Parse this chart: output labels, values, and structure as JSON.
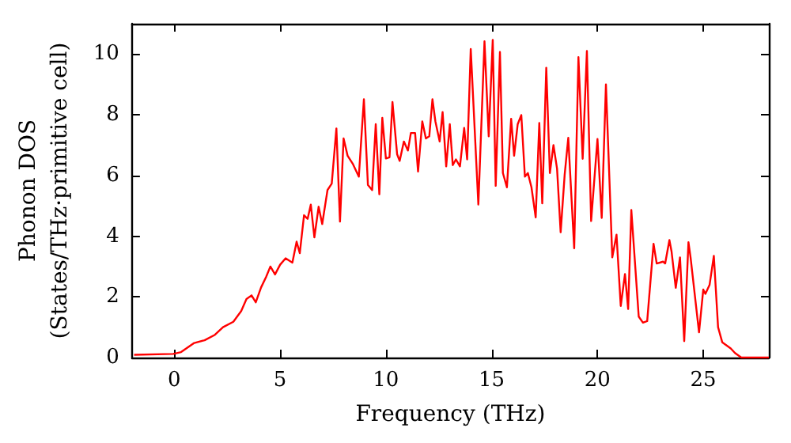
{
  "chart_data": {
    "type": "line",
    "xlabel": "Frequency (THz)",
    "ylabel": "Phonon DOS\n(States/THz·primitive cell)",
    "xlim": [
      -2,
      28.1
    ],
    "ylim": [
      0,
      11
    ],
    "xticks": [
      0,
      5,
      10,
      15,
      20,
      25
    ],
    "yticks": [
      0,
      2,
      4,
      6,
      8,
      10
    ],
    "grid": false,
    "marker": "none",
    "line_style": "solid",
    "series": [
      {
        "color": "#ff0000",
        "x": [
          -1.9,
          -0.05,
          0.32,
          0.94,
          1.43,
          1.92,
          2.3,
          2.79,
          3.16,
          3.41,
          3.65,
          3.85,
          4.1,
          4.34,
          4.54,
          4.76,
          5.0,
          5.26,
          5.58,
          5.78,
          5.93,
          6.13,
          6.3,
          6.45,
          6.62,
          6.82,
          6.99,
          7.24,
          7.44,
          7.66,
          7.83,
          8.0,
          8.19,
          8.43,
          8.72,
          8.96,
          9.15,
          9.35,
          9.52,
          9.69,
          9.83,
          10.0,
          10.17,
          10.31,
          10.53,
          10.65,
          10.85,
          11.04,
          11.18,
          11.38,
          11.52,
          11.72,
          11.89,
          12.05,
          12.2,
          12.34,
          12.54,
          12.68,
          12.85,
          13.02,
          13.16,
          13.31,
          13.5,
          13.7,
          13.84,
          14.01,
          14.37,
          14.66,
          14.86,
          15.05,
          15.19,
          15.39,
          15.53,
          15.72,
          15.92,
          16.06,
          16.23,
          16.4,
          16.57,
          16.71,
          16.88,
          17.08,
          17.25,
          17.39,
          17.58,
          17.75,
          17.92,
          18.09,
          18.26,
          18.45,
          18.62,
          18.9,
          19.1,
          19.3,
          19.5,
          19.7,
          20.0,
          20.2,
          20.4,
          20.7,
          20.9,
          21.1,
          21.3,
          21.45,
          21.6,
          21.95,
          22.15,
          22.35,
          22.65,
          22.8,
          23.1,
          23.2,
          23.4,
          23.5,
          23.7,
          23.9,
          24.1,
          24.3,
          24.4,
          24.8,
          25.0,
          25.1,
          25.3,
          25.5,
          25.7,
          25.9,
          26.3,
          26.5,
          26.8,
          28.1
        ],
        "values": [
          0.09,
          0.12,
          0.18,
          0.48,
          0.57,
          0.75,
          1.0,
          1.18,
          1.53,
          1.93,
          2.05,
          1.82,
          2.31,
          2.66,
          3.0,
          2.74,
          3.06,
          3.27,
          3.13,
          3.82,
          3.44,
          4.69,
          4.57,
          5.04,
          3.96,
          4.97,
          4.4,
          5.52,
          5.73,
          7.55,
          4.48,
          7.22,
          6.65,
          6.39,
          5.96,
          8.51,
          5.69,
          5.52,
          7.69,
          5.38,
          7.9,
          6.56,
          6.6,
          8.42,
          6.7,
          6.48,
          7.12,
          6.82,
          7.4,
          7.4,
          6.13,
          7.78,
          7.22,
          7.29,
          8.51,
          7.78,
          7.12,
          8.09,
          6.3,
          7.69,
          6.34,
          6.53,
          6.3,
          7.57,
          6.53,
          10.17,
          5.04,
          10.42,
          7.29,
          10.47,
          5.66,
          10.07,
          6.08,
          5.61,
          7.87,
          6.65,
          7.69,
          7.99,
          5.96,
          6.08,
          5.61,
          4.62,
          7.73,
          5.08,
          9.55,
          6.08,
          7.0,
          6.22,
          4.13,
          6.03,
          7.24,
          3.6,
          9.9,
          6.55,
          10.1,
          4.5,
          7.2,
          4.6,
          9.0,
          3.3,
          4.05,
          1.7,
          2.75,
          1.6,
          4.86,
          1.35,
          1.15,
          1.2,
          3.75,
          3.1,
          3.16,
          3.1,
          3.87,
          3.5,
          2.3,
          3.3,
          0.54,
          3.8,
          3.3,
          0.83,
          2.24,
          2.1,
          2.4,
          3.35,
          1.0,
          0.5,
          0.3,
          0.15,
          0,
          0
        ]
      }
    ]
  }
}
